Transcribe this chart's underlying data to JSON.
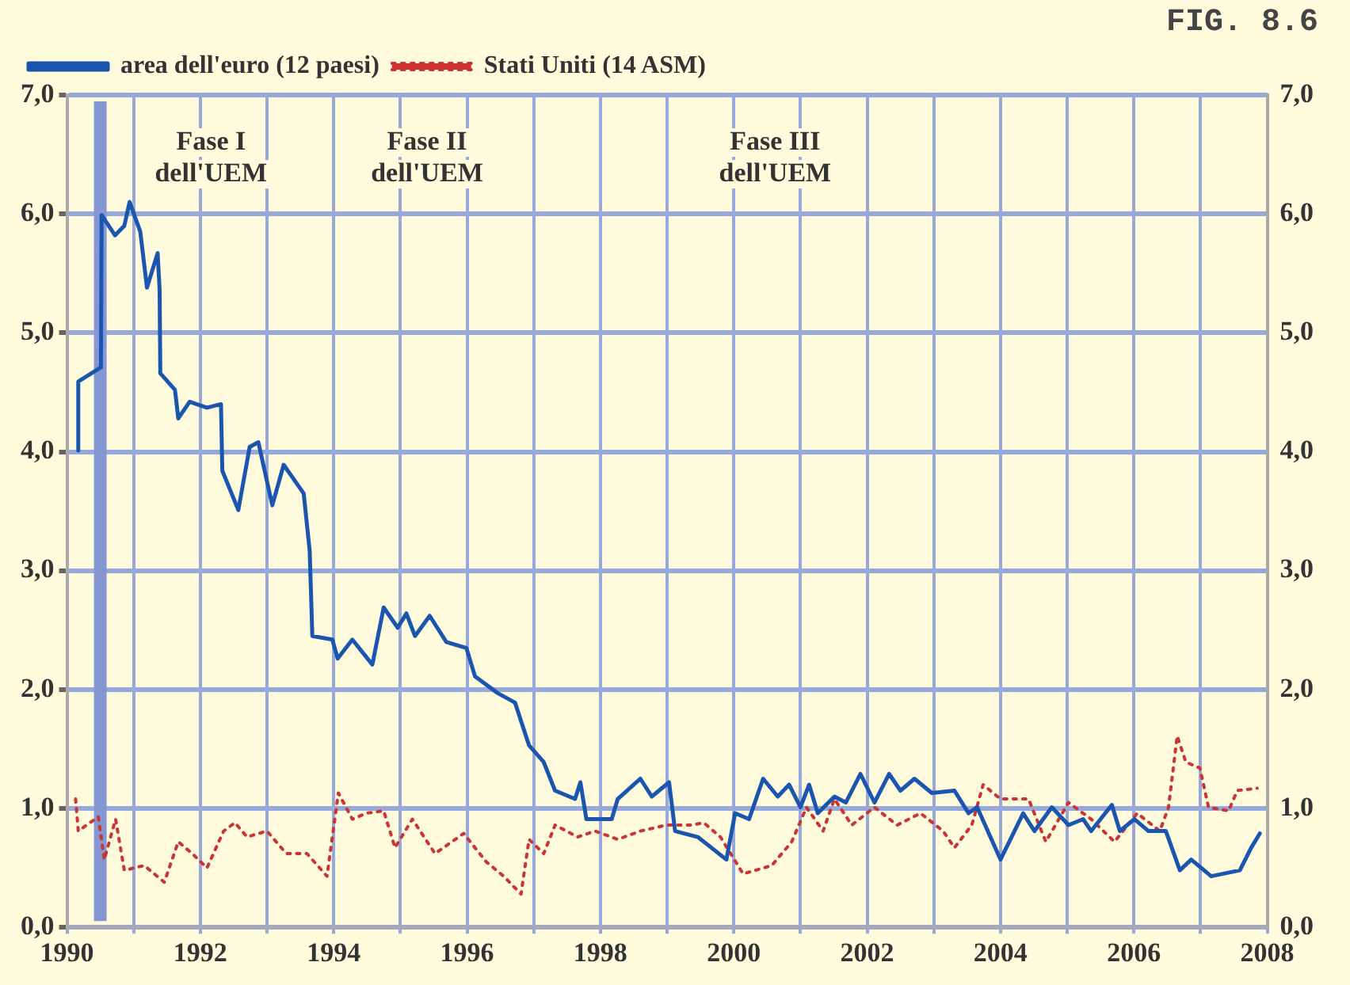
{
  "chart_data": {
    "type": "line",
    "title": "FIG. 8.6",
    "xlim": [
      1990,
      2008
    ],
    "xticks": [
      1990,
      {
        "value": 1991,
        "label": null
      },
      1992,
      {
        "value": 1993,
        "label": null
      },
      1994,
      {
        "value": 1995,
        "label": null
      },
      1996,
      {
        "value": 1997,
        "label": null
      },
      1998,
      {
        "value": 1999,
        "label": null
      },
      2000,
      {
        "value": 2001,
        "label": null
      },
      2002,
      {
        "value": 2003,
        "label": null
      },
      2004,
      {
        "value": 2005,
        "label": null
      },
      2006,
      {
        "value": 2007,
        "label": null
      },
      2008
    ],
    "ylim": [
      0,
      7
    ],
    "yticks": [
      {
        "value": 0,
        "label": "0,0"
      },
      {
        "value": 1,
        "label": "1,0"
      },
      {
        "value": 2,
        "label": "2,0"
      },
      {
        "value": 3,
        "label": "3,0"
      },
      {
        "value": 4,
        "label": "4,0"
      },
      {
        "value": 5,
        "label": "5,0"
      },
      {
        "value": 6,
        "label": "6,0"
      },
      {
        "value": 7,
        "label": "7,0"
      }
    ],
    "y2lim": [
      0,
      7
    ],
    "y2ticks": [
      {
        "value": 0,
        "label": "0,0"
      },
      {
        "value": 1,
        "label": "1,0"
      },
      {
        "value": 2,
        "label": "2,0"
      },
      {
        "value": 3,
        "label": "3,0"
      },
      {
        "value": 4,
        "label": "4,0"
      },
      {
        "value": 5,
        "label": "5,0"
      },
      {
        "value": 6,
        "label": "6,0"
      },
      {
        "value": 7,
        "label": "7,0"
      }
    ],
    "grid": true,
    "legend": "top left",
    "marker": "none",
    "ref_lines": [
      {
        "axis": "x",
        "value": 1990.5,
        "color": "#8497d4"
      }
    ],
    "annotations": [
      "Fase I\ndell'UEM",
      "Fase II\ndell'UEM",
      "Fase III\ndell'UEM"
    ],
    "series": [
      {
        "name": "area dell'euro (12 paesi)",
        "color": "#1a56b0",
        "line_style": "solid",
        "x": [
          1990.17,
          1990.17,
          1990.51,
          1990.52,
          1990.72,
          1990.86,
          1990.94,
          1991.1,
          1991.2,
          1991.36,
          1991.39,
          1991.4,
          1991.62,
          1991.67,
          1991.84,
          1992.1,
          1992.31,
          1992.33,
          1992.57,
          1992.74,
          1992.87,
          1993.08,
          1993.25,
          1993.55,
          1993.64,
          1993.68,
          1993.98,
          1994.06,
          1994.28,
          1994.58,
          1994.75,
          1994.96,
          1995.09,
          1995.22,
          1995.44,
          1995.69,
          1995.99,
          1996.12,
          1996.46,
          1996.72,
          1996.93,
          1997.15,
          1997.32,
          1997.62,
          1997.7,
          1997.79,
          1998.17,
          1998.26,
          1998.6,
          1998.77,
          1999.03,
          1999.12,
          1999.46,
          1999.89,
          2000.02,
          2000.23,
          2000.44,
          2000.66,
          2000.83,
          2001.0,
          2001.13,
          2001.26,
          2001.51,
          2001.68,
          2001.9,
          2002.11,
          2002.33,
          2002.5,
          2002.71,
          2002.97,
          2003.31,
          2003.52,
          2003.65,
          2004.0,
          2004.21,
          2004.34,
          2004.51,
          2004.77,
          2005.02,
          2005.24,
          2005.36,
          2005.67,
          2005.79,
          2006.01,
          2006.22,
          2006.48,
          2006.69,
          2006.86,
          2007.16,
          2007.59,
          2007.76,
          2007.89
        ],
        "values": [
          4.01,
          4.59,
          4.71,
          5.99,
          5.82,
          5.9,
          6.1,
          5.85,
          5.38,
          5.67,
          5.36,
          4.66,
          4.52,
          4.28,
          4.42,
          4.37,
          4.4,
          3.84,
          3.51,
          4.04,
          4.08,
          3.55,
          3.89,
          3.65,
          3.17,
          2.45,
          2.42,
          2.26,
          2.42,
          2.21,
          2.69,
          2.52,
          2.64,
          2.45,
          2.62,
          2.4,
          2.35,
          2.11,
          1.97,
          1.89,
          1.53,
          1.39,
          1.15,
          1.08,
          1.22,
          0.91,
          0.91,
          1.08,
          1.25,
          1.1,
          1.22,
          0.81,
          0.76,
          0.57,
          0.96,
          0.91,
          1.25,
          1.1,
          1.2,
          1.01,
          1.2,
          0.96,
          1.1,
          1.05,
          1.29,
          1.05,
          1.29,
          1.15,
          1.25,
          1.13,
          1.15,
          0.96,
          1.01,
          0.57,
          0.81,
          0.96,
          0.81,
          1.01,
          0.86,
          0.91,
          0.81,
          1.03,
          0.81,
          0.91,
          0.81,
          0.81,
          0.48,
          0.57,
          0.43,
          0.48,
          0.67,
          0.79
        ]
      },
      {
        "name": "Stati Uniti (14 ASM)",
        "color": "#cc3333",
        "line_style": "dotted",
        "x": [
          1990.13,
          1990.17,
          1990.47,
          1990.56,
          1990.73,
          1990.86,
          1991.16,
          1991.46,
          1991.67,
          1991.88,
          1992.1,
          1992.35,
          1992.52,
          1992.7,
          1993.0,
          1993.29,
          1993.6,
          1993.9,
          1994.07,
          1994.28,
          1994.49,
          1994.75,
          1994.92,
          1995.18,
          1995.52,
          1995.95,
          1996.29,
          1996.55,
          1996.81,
          1996.93,
          1997.15,
          1997.32,
          1997.66,
          1997.92,
          1998.26,
          1998.6,
          1998.99,
          1999.37,
          1999.55,
          1999.8,
          2000.14,
          2000.57,
          2000.87,
          2001.09,
          2001.34,
          2001.51,
          2001.77,
          2002.11,
          2002.45,
          2002.8,
          2003.14,
          2003.31,
          2003.57,
          2003.74,
          2004.0,
          2004.42,
          2004.68,
          2005.02,
          2005.36,
          2005.71,
          2006.05,
          2006.39,
          2006.52,
          2006.65,
          2006.78,
          2006.99,
          2007.12,
          2007.42,
          2007.55,
          2007.85
        ],
        "values": [
          1.08,
          0.81,
          0.93,
          0.57,
          0.91,
          0.48,
          0.52,
          0.38,
          0.72,
          0.62,
          0.5,
          0.81,
          0.88,
          0.76,
          0.81,
          0.62,
          0.62,
          0.43,
          1.13,
          0.91,
          0.96,
          0.98,
          0.67,
          0.91,
          0.62,
          0.79,
          0.55,
          0.43,
          0.28,
          0.74,
          0.62,
          0.86,
          0.76,
          0.81,
          0.74,
          0.81,
          0.86,
          0.86,
          0.88,
          0.76,
          0.45,
          0.52,
          0.72,
          1.01,
          0.81,
          1.08,
          0.86,
          1.01,
          0.86,
          0.96,
          0.81,
          0.67,
          0.86,
          1.2,
          1.08,
          1.08,
          0.72,
          1.05,
          0.91,
          0.72,
          0.96,
          0.81,
          1.01,
          1.61,
          1.39,
          1.34,
          1.01,
          0.98,
          1.15,
          1.17
        ]
      }
    ]
  }
}
